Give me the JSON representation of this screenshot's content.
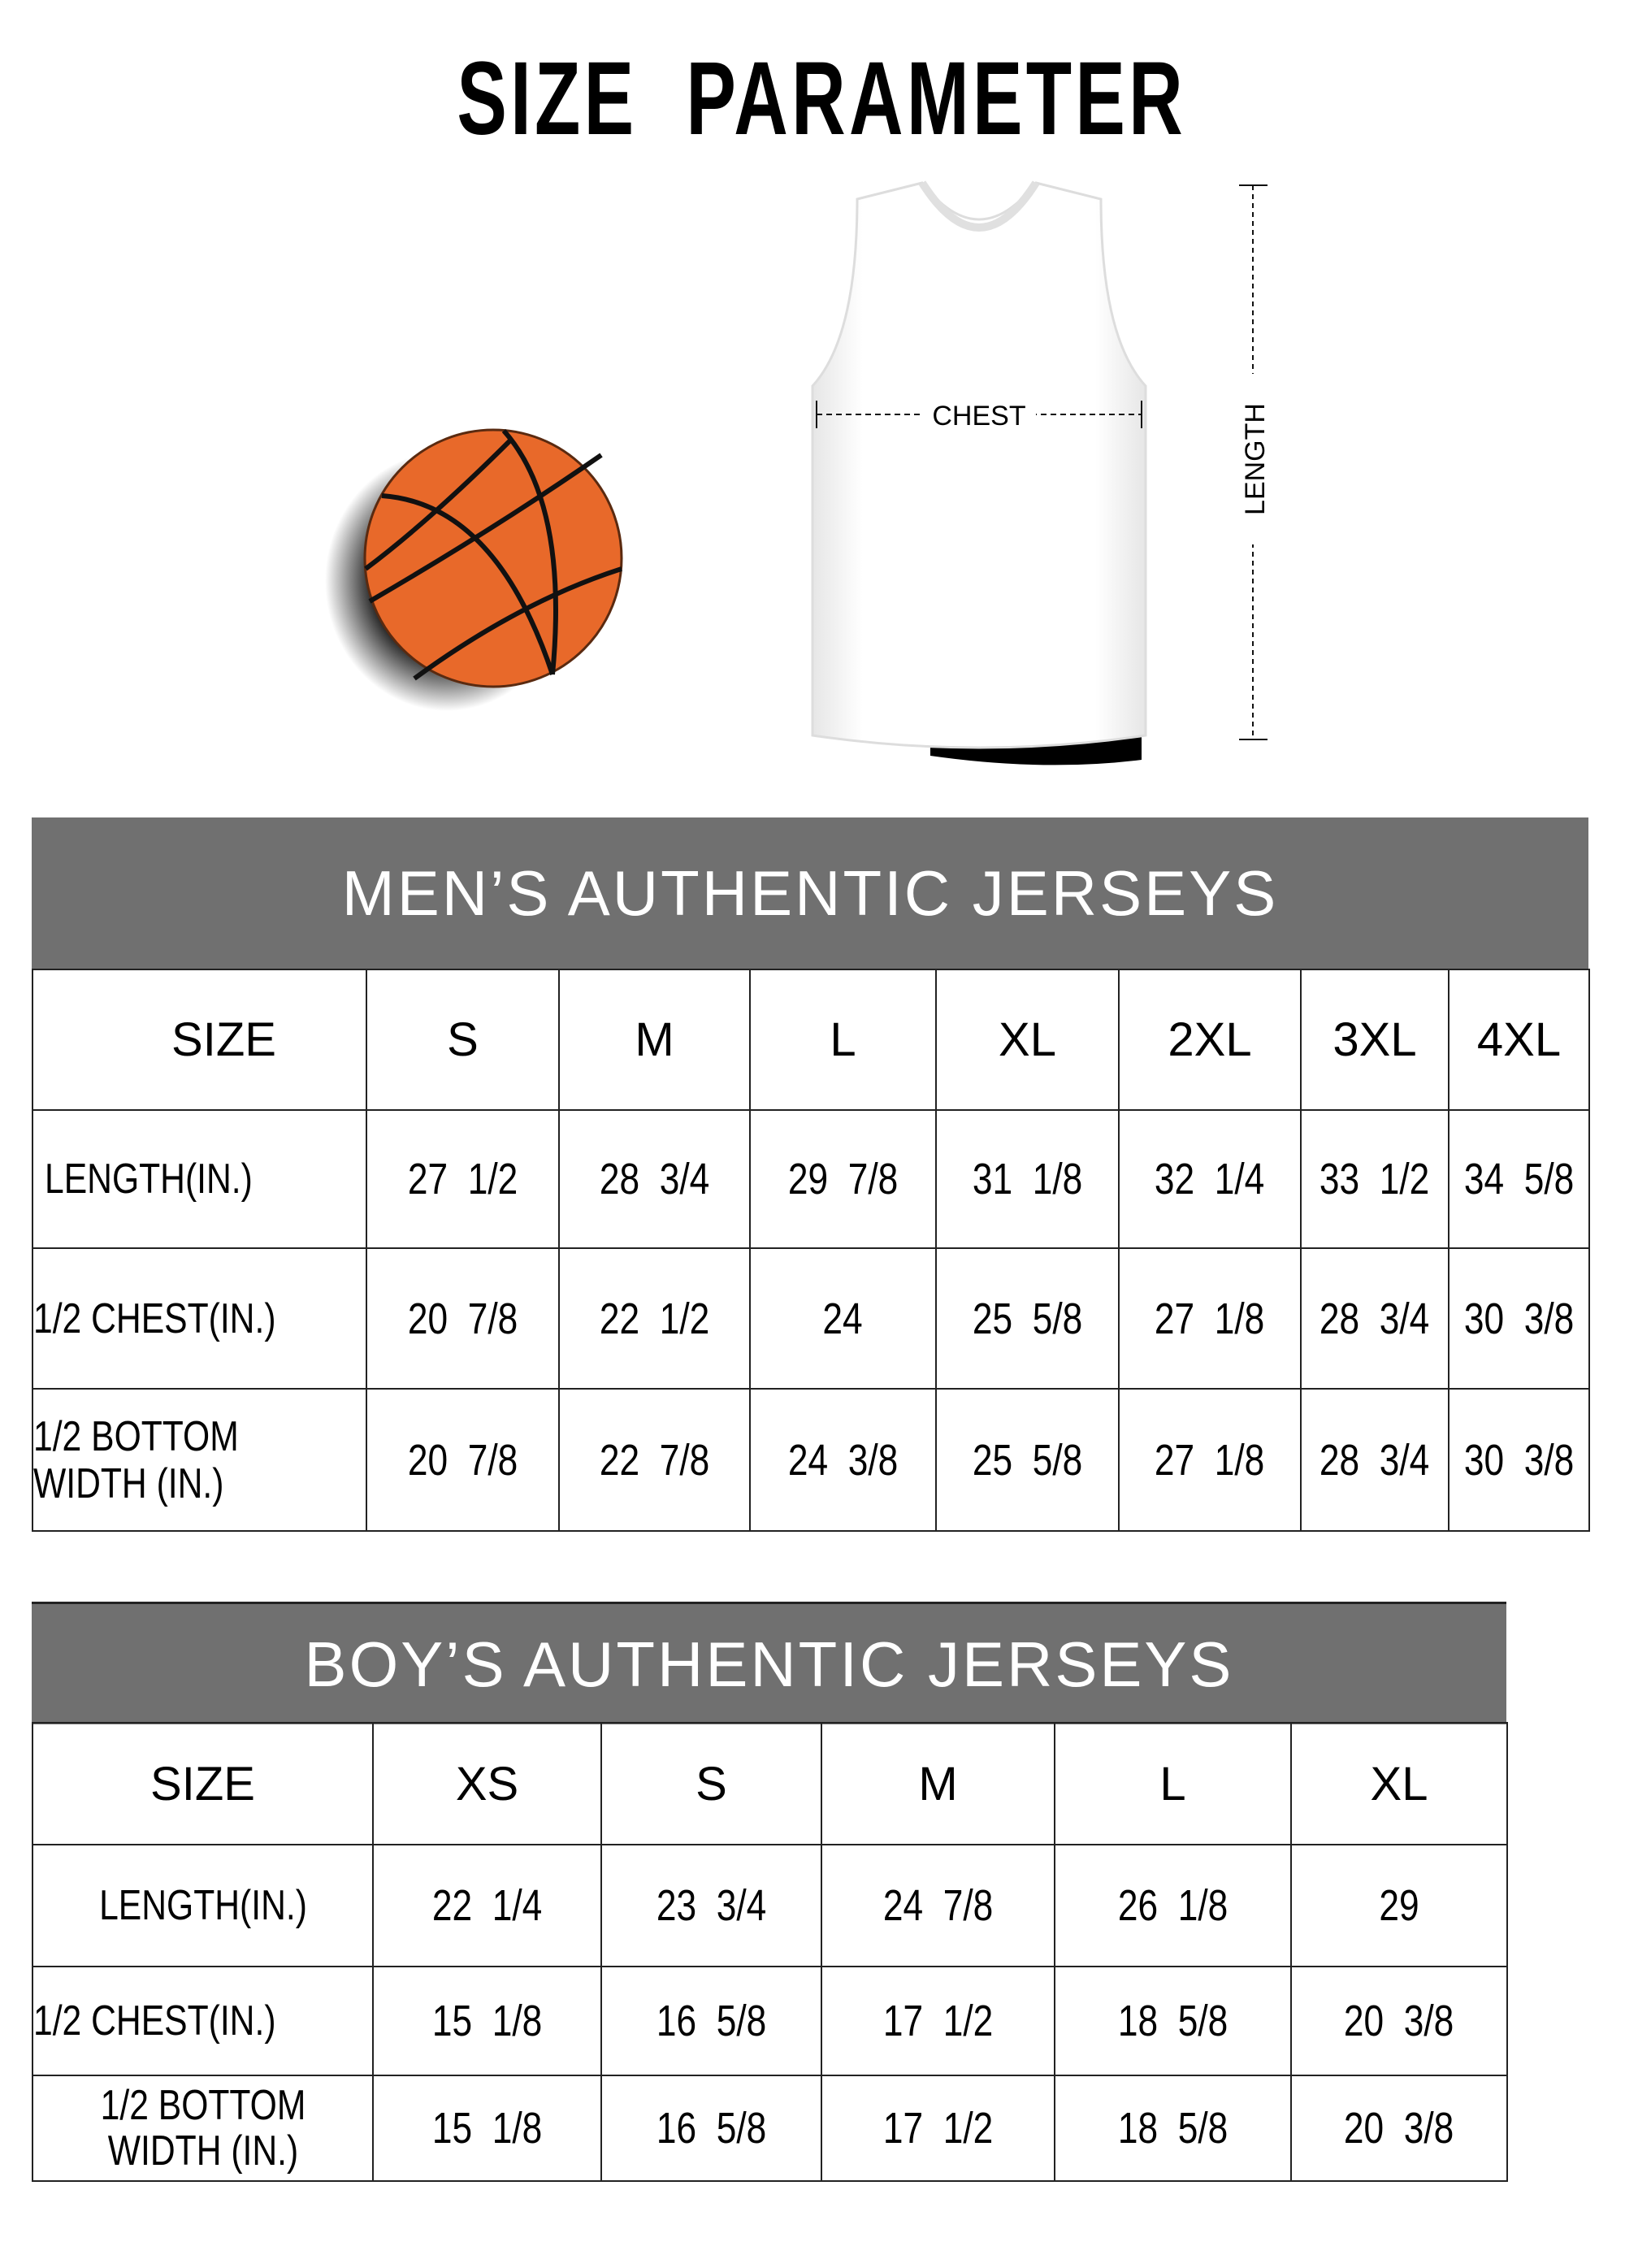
{
  "title": "SIZE  PARAMETER",
  "diagram": {
    "chest_label": "CHEST",
    "length_label": "LENGTH",
    "ball_color": "#E8692A"
  },
  "colors": {
    "band": "#707070",
    "band_text": "#FFFFFF"
  },
  "mens": {
    "heading": "MEN’S AUTHENTIC JERSEYS",
    "size_label": "SIZE",
    "sizes": [
      "S",
      "M",
      "L",
      "XL",
      "2XL",
      "3XL",
      "4XL"
    ],
    "rows": [
      {
        "label": "LENGTH(IN.)",
        "values": [
          "27  1/2",
          "28  3/4",
          "29  7/8",
          "31  1/8",
          "32  1/4",
          "33  1/2",
          "34  5/8"
        ]
      },
      {
        "label": "1/2 CHEST(IN.)",
        "values": [
          "20  7/8",
          "22  1/2",
          "24",
          "25  5/8",
          "27  1/8",
          "28  3/4",
          "30  3/8"
        ]
      },
      {
        "label": "1/2 BOTTOM WIDTH  (IN.)",
        "values": [
          "20  7/8",
          "22  7/8",
          "24  3/8",
          "25  5/8",
          "27  1/8",
          "28  3/4",
          "30  3/8"
        ]
      }
    ]
  },
  "boys": {
    "heading": "BOY’S AUTHENTIC JERSEYS",
    "size_label": "SIZE",
    "sizes": [
      "XS",
      "S",
      "M",
      "L",
      "XL"
    ],
    "rows": [
      {
        "label": "LENGTH(IN.)",
        "values": [
          "22  1/4",
          "23  3/4",
          "24  7/8",
          "26  1/8",
          "29"
        ]
      },
      {
        "label": "1/2 CHEST(IN.)",
        "values": [
          "15  1/8",
          "16  5/8",
          "17  1/2",
          "18  5/8",
          "20  3/8"
        ]
      },
      {
        "label": "1/2 BOTTOM WIDTH  (IN.)",
        "values": [
          "15  1/8",
          "16  5/8",
          "17  1/2",
          "18  5/8",
          "20  3/8"
        ]
      }
    ]
  }
}
